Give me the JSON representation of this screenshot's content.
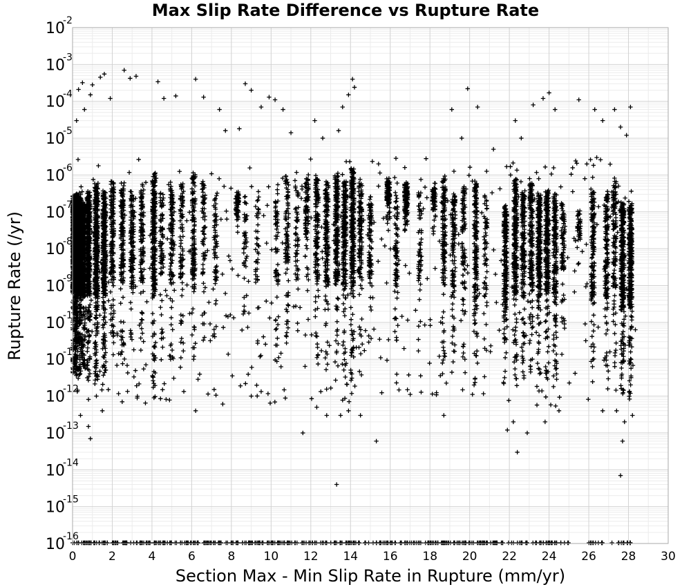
{
  "chart_data": {
    "type": "scatter",
    "title": "Max Slip Rate Difference vs Rupture Rate",
    "xlabel": "Section Max - Min Slip Rate in Rupture (mm/yr)",
    "ylabel": "Rupture Rate (/yr)",
    "xlim": [
      0,
      30
    ],
    "ylim": [
      1e-16,
      0.01
    ],
    "yscale": "log",
    "grid": true,
    "marker": "+",
    "marker_color": "#000000",
    "xticks": [
      0,
      2,
      4,
      6,
      8,
      10,
      12,
      14,
      16,
      18,
      20,
      22,
      24,
      26,
      28,
      30
    ],
    "yticks": [
      {
        "base": "10",
        "exp": "-2",
        "value": 0.01
      },
      {
        "base": "10",
        "exp": "-3",
        "value": 0.001
      },
      {
        "base": "10",
        "exp": "-4",
        "value": 0.0001
      },
      {
        "base": "10",
        "exp": "-5",
        "value": 1e-05
      },
      {
        "base": "10",
        "exp": "-6",
        "value": 1e-06
      },
      {
        "base": "10",
        "exp": "-7",
        "value": 1e-07
      },
      {
        "base": "10",
        "exp": "-8",
        "value": 1e-08
      },
      {
        "base": "10",
        "exp": "-9",
        "value": 1e-09
      },
      {
        "base": "10",
        "exp": "-10",
        "value": 1e-10
      },
      {
        "base": "10",
        "exp": "-11",
        "value": 1e-11
      },
      {
        "base": "10",
        "exp": "-12",
        "value": 1e-12
      },
      {
        "base": "10",
        "exp": "-13",
        "value": 1e-13
      },
      {
        "base": "10",
        "exp": "-14",
        "value": 1e-14
      },
      {
        "base": "10",
        "exp": "-15",
        "value": 1e-15
      },
      {
        "base": "10",
        "exp": "-16",
        "value": 1e-16
      }
    ],
    "series": [
      {
        "points": [
          [
            0.3,
            0.00021
          ],
          [
            0.5,
            0.00032
          ],
          [
            0.2,
            3e-05
          ],
          [
            0.6,
            6e-05
          ],
          [
            0.9,
            0.00015
          ],
          [
            1.0,
            0.00028
          ],
          [
            1.4,
            0.00045
          ],
          [
            1.6,
            0.00055
          ],
          [
            1.9,
            0.00012
          ],
          [
            2.6,
            0.0007
          ],
          [
            2.9,
            0.00042
          ],
          [
            3.2,
            0.00048
          ],
          [
            4.3,
            0.00034
          ],
          [
            4.6,
            0.00012
          ],
          [
            5.2,
            0.00014
          ],
          [
            6.2,
            0.0004
          ],
          [
            6.6,
            0.00013
          ],
          [
            7.4,
            6e-05
          ],
          [
            7.7,
            1.6e-05
          ],
          [
            8.4,
            1.8e-05
          ],
          [
            8.7,
            0.0003
          ],
          [
            9.0,
            0.0002
          ],
          [
            9.5,
            7e-05
          ],
          [
            9.9,
            0.00013
          ],
          [
            10.2,
            0.00011
          ],
          [
            10.6,
            6e-05
          ],
          [
            11.0,
            1.4e-05
          ],
          [
            12.2,
            3e-05
          ],
          [
            12.6,
            1e-05
          ],
          [
            13.4,
            1.6e-05
          ],
          [
            13.6,
            7e-05
          ],
          [
            13.9,
            0.00015
          ],
          [
            14.1,
            0.0004
          ],
          [
            14.2,
            0.00024
          ],
          [
            19.1,
            6e-05
          ],
          [
            19.6,
            1e-05
          ],
          [
            19.9,
            0.00022
          ],
          [
            20.4,
            7e-05
          ],
          [
            21.2,
            5e-06
          ],
          [
            22.3,
            3e-05
          ],
          [
            22.6,
            1e-05
          ],
          [
            23.2,
            8e-05
          ],
          [
            23.7,
            0.00012
          ],
          [
            24.0,
            0.00017
          ],
          [
            24.3,
            6e-05
          ],
          [
            25.5,
            0.00011
          ],
          [
            26.3,
            6e-05
          ],
          [
            26.7,
            3e-05
          ],
          [
            27.3,
            6e-05
          ],
          [
            27.6,
            2e-05
          ],
          [
            28.1,
            7e-05
          ],
          [
            27.9,
            1.2e-05
          ],
          [
            1.2,
            1e-12
          ],
          [
            1.8,
            1.5e-12
          ],
          [
            0.4,
            3e-13
          ],
          [
            0.8,
            1.5e-13
          ],
          [
            0.9,
            7e-14
          ],
          [
            1.5,
            4e-13
          ],
          [
            2.5,
            7e-13
          ],
          [
            4.1,
            9e-13
          ],
          [
            6.2,
            4e-13
          ],
          [
            9.0,
            1e-12
          ],
          [
            11.6,
            1e-13
          ],
          [
            12.3,
            5e-13
          ],
          [
            12.8,
            3e-13
          ],
          [
            13.5,
            3e-13
          ],
          [
            13.9,
            4e-13
          ],
          [
            14.5,
            3e-13
          ],
          [
            13.3,
            4e-15
          ],
          [
            15.3,
            6e-14
          ],
          [
            18.7,
            3e-13
          ],
          [
            21.9,
            1.2e-13
          ],
          [
            22.2,
            2e-13
          ],
          [
            22.4,
            3e-14
          ],
          [
            22.9,
            1e-13
          ],
          [
            23.8,
            2e-13
          ],
          [
            24.5,
            4e-13
          ],
          [
            26.7,
            4e-13
          ],
          [
            27.4,
            4e-13
          ],
          [
            27.8,
            2e-13
          ],
          [
            28.2,
            3e-13
          ],
          [
            27.6,
            7e-15
          ],
          [
            27.7,
            6e-14
          ]
        ]
      }
    ]
  }
}
